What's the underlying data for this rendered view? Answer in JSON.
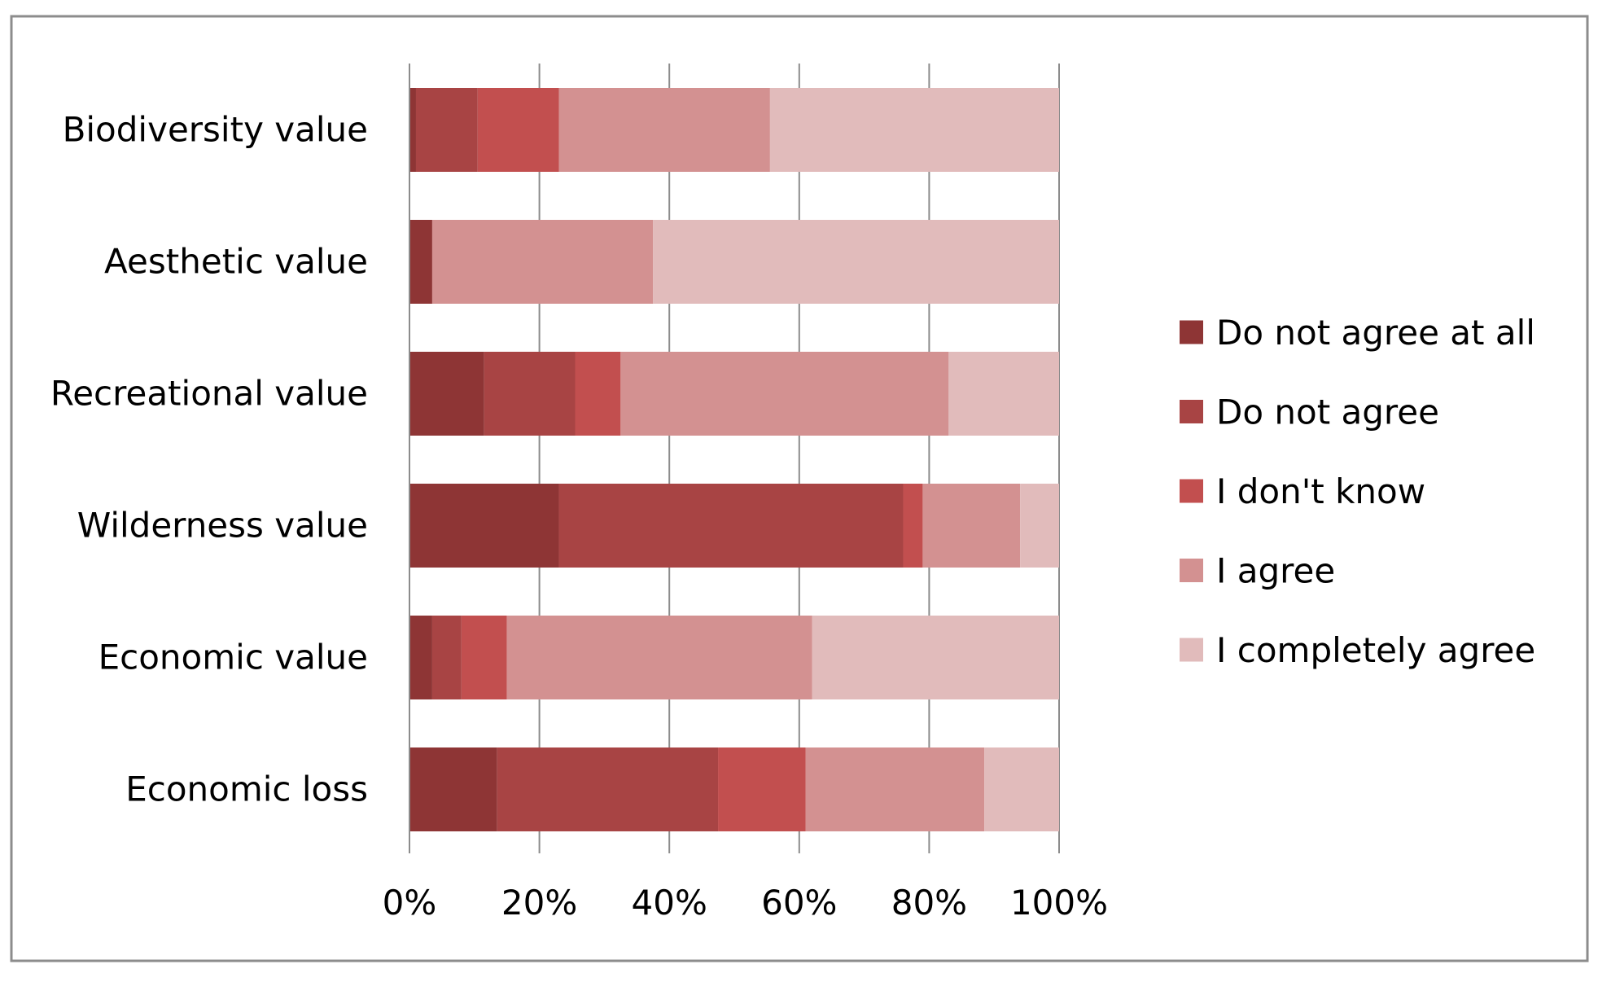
{
  "chart_data": {
    "type": "bar",
    "orientation": "horizontal",
    "stacked": "percent",
    "categories": [
      "Biodiversity value",
      "Aesthetic value",
      "Recreational value",
      "Wilderness value",
      "Economic value",
      "Economic loss"
    ],
    "series": [
      {
        "name": "Do not agree at all",
        "color": "#8e3535",
        "values": [
          1,
          3.5,
          11.5,
          23,
          3.5,
          13.5
        ]
      },
      {
        "name": "Do not agree",
        "color": "#a84444",
        "values": [
          9.5,
          0,
          14,
          53,
          4.5,
          34
        ]
      },
      {
        "name": "I don't know",
        "color": "#c24f4f",
        "values": [
          12.5,
          0,
          7,
          3,
          7,
          13.5
        ]
      },
      {
        "name": "I agree",
        "color": "#d39191",
        "values": [
          32.5,
          34,
          50.5,
          15,
          47,
          27.5
        ]
      },
      {
        "name": "I completely agree",
        "color": "#e1bbbb",
        "values": [
          44.5,
          62.5,
          17,
          6,
          38,
          11.5
        ]
      }
    ],
    "x_ticks": [
      "0%",
      "20%",
      "40%",
      "60%",
      "80%",
      "100%"
    ],
    "xlim": [
      0,
      100
    ],
    "grid": "vertical",
    "legend_position": "right",
    "title": "",
    "xlabel": "",
    "ylabel": ""
  }
}
